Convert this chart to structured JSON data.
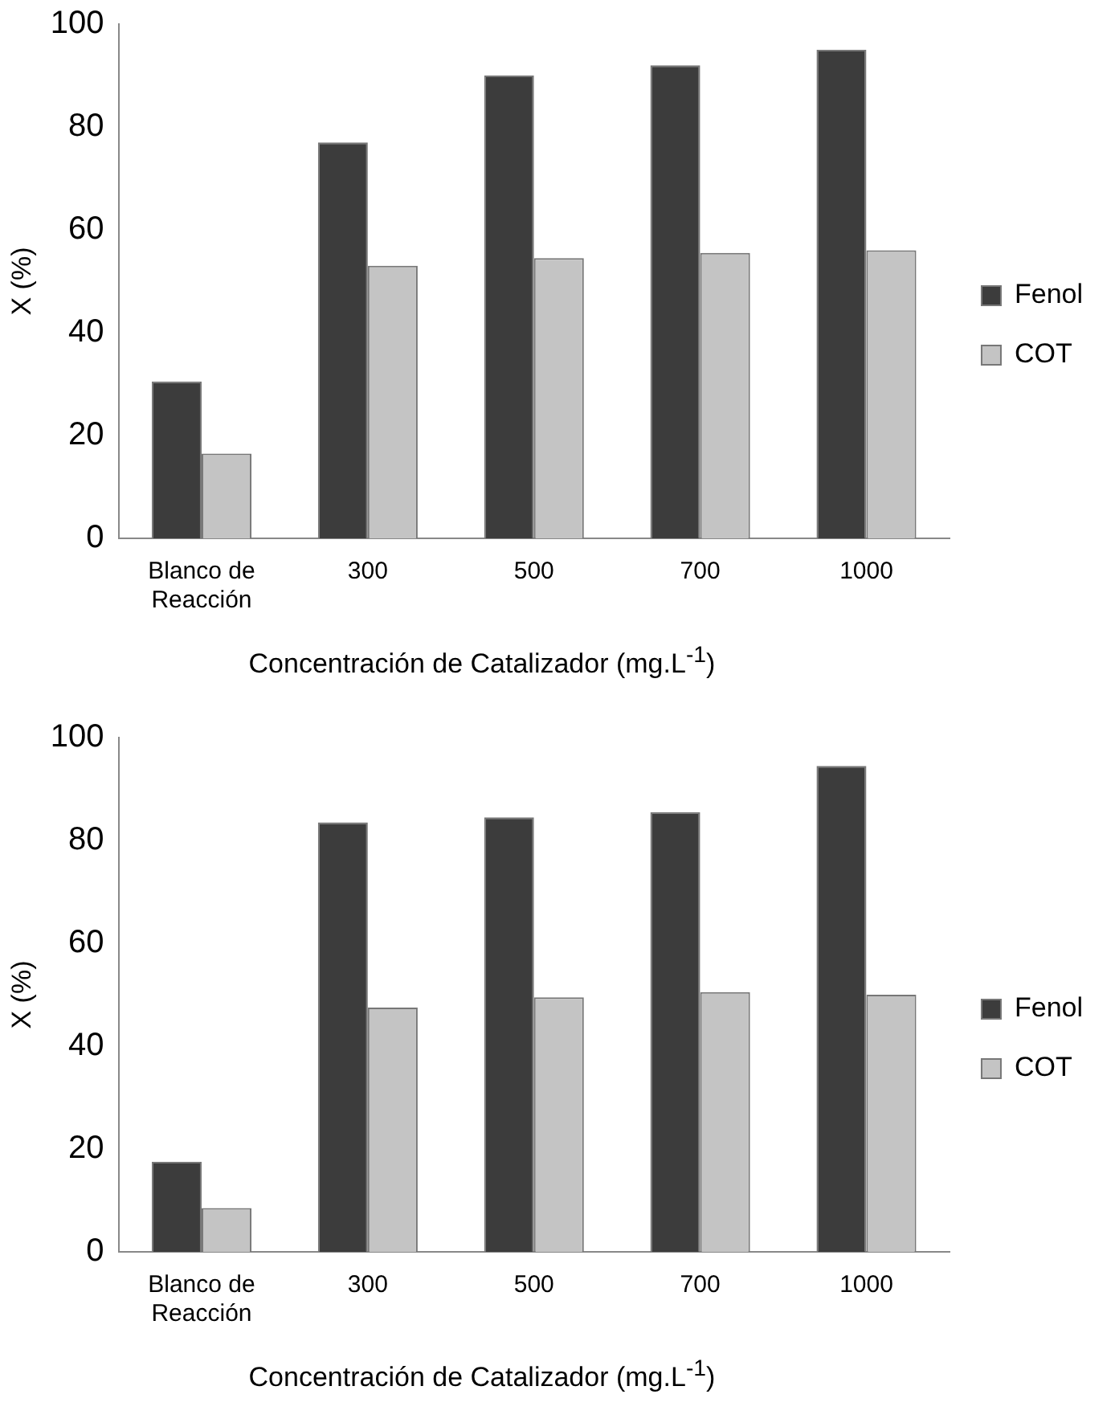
{
  "chart_data": [
    {
      "type": "bar",
      "categories": [
        "Blanco de Reacción",
        "300",
        "500",
        "700",
        "1000"
      ],
      "xlabel": "Concentración de Catalizador (mg.L$^{-1}$)",
      "ylabel": "X (%)",
      "ylim": [
        0,
        100
      ],
      "yticks": [
        0,
        20,
        40,
        60,
        80,
        100
      ],
      "grid": false,
      "legend": "right",
      "series": [
        {
          "name": "Fenol",
          "color": "#3c3c3c",
          "values": [
            30.5,
            77,
            90,
            92,
            95
          ]
        },
        {
          "name": "COT",
          "color": "#c4c4c4",
          "values": [
            16.5,
            53,
            54.5,
            55.5,
            56
          ]
        }
      ]
    },
    {
      "type": "bar",
      "categories": [
        "Blanco de Reacción",
        "300",
        "500",
        "700",
        "1000"
      ],
      "xlabel": "Concentración de Catalizador (mg.L$^{-1}$)",
      "ylabel": "X (%)",
      "ylim": [
        0,
        100
      ],
      "yticks": [
        0,
        20,
        40,
        60,
        80,
        100
      ],
      "grid": false,
      "legend": "right",
      "series": [
        {
          "name": "Fenol",
          "color": "#3c3c3c",
          "values": [
            17.5,
            83.5,
            84.5,
            85.5,
            94.5
          ]
        },
        {
          "name": "COT",
          "color": "#c4c4c4",
          "values": [
            8.5,
            47.5,
            49.5,
            50.5,
            50
          ]
        }
      ]
    }
  ]
}
